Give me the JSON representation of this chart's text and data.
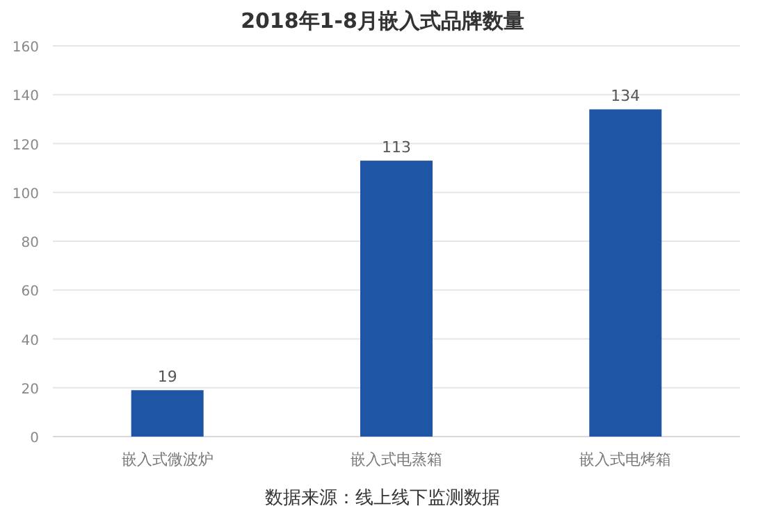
{
  "chart_data": {
    "type": "bar",
    "title": "2018年1-8月嵌入式品牌数量",
    "categories": [
      "嵌入式微波炉",
      "嵌入式电蒸箱",
      "嵌入式电烤箱"
    ],
    "series": [
      {
        "color": "#1e56a5",
        "values": [
          19,
          113,
          134
        ]
      }
    ],
    "data_labels": true,
    "ylim": [
      0,
      160
    ],
    "yticks": [
      0,
      20,
      40,
      60,
      80,
      100,
      120,
      140,
      160
    ],
    "grid": "y",
    "annotations": [
      "数据来源：线上线下监测数据"
    ]
  }
}
